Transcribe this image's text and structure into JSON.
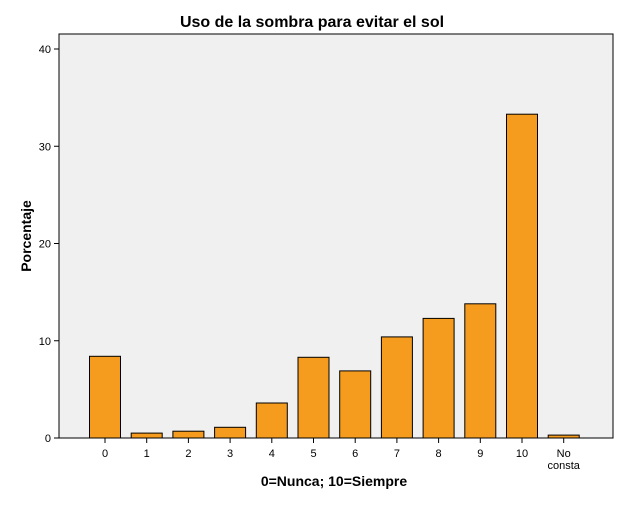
{
  "chart_data": {
    "type": "bar",
    "title": "Uso de la sombra para evitar el sol",
    "xlabel": "0=Nunca; 10=Siempre",
    "ylabel": "Porcentaje",
    "categories": [
      "0",
      "1",
      "2",
      "3",
      "4",
      "5",
      "6",
      "7",
      "8",
      "9",
      "10",
      "No\nconsta"
    ],
    "values": [
      8.4,
      0.5,
      0.7,
      1.1,
      3.6,
      8.3,
      6.9,
      10.4,
      12.3,
      13.8,
      33.3,
      0.3
    ],
    "ylim": [
      0,
      40
    ],
    "yticks": [
      0,
      10,
      20,
      30,
      40
    ],
    "bar_color": "#f59b1d",
    "plot_background": "#f0f0f0",
    "grid": false,
    "legend": "none"
  }
}
